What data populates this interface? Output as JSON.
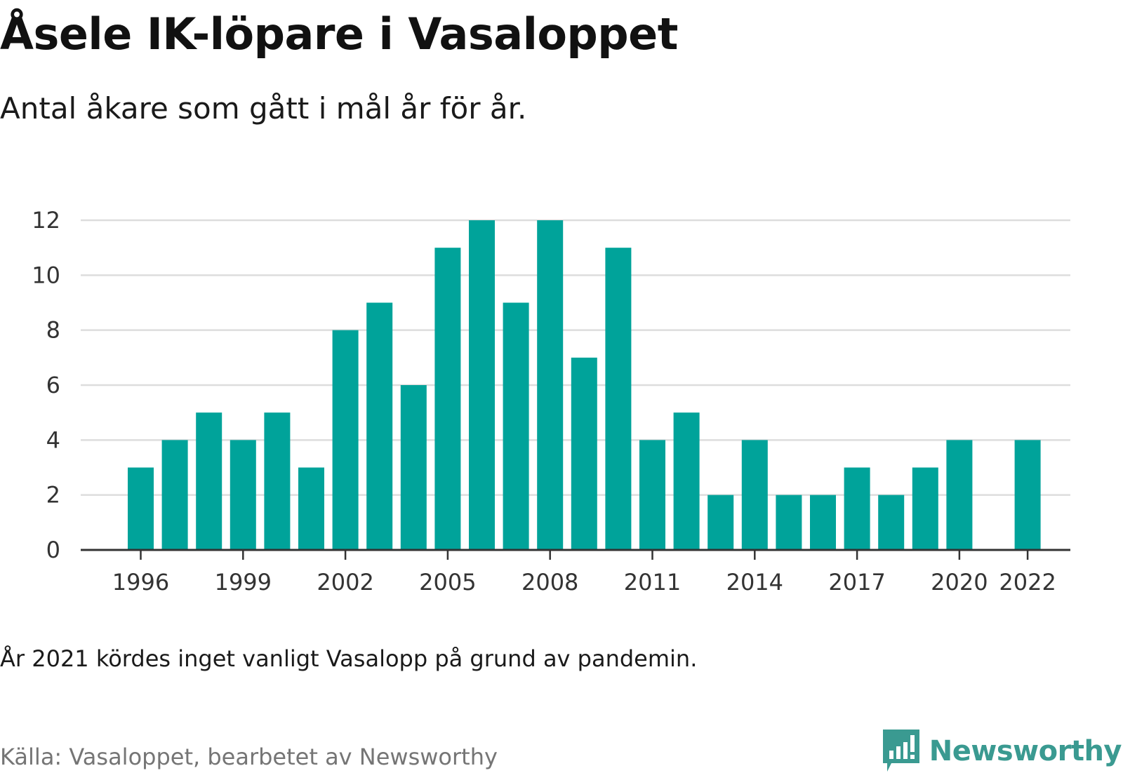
{
  "title": "Åsele IK-löpare i Vasaloppet",
  "subtitle": "Antal åkare som gått i mål år för år.",
  "note": "År 2021 kördes inget vanligt Vasalopp på grund av pandemin.",
  "source": "Källa: Vasaloppet, bearbetet av Newsworthy",
  "brand": {
    "name": "Newsworthy",
    "icon": "newsworthy-logo-icon",
    "color": "#3a9a91"
  },
  "chart_data": {
    "type": "bar",
    "title": "Åsele IK-löpare i Vasaloppet",
    "subtitle": "Antal åkare som gått i mål år för år.",
    "xlabel": "",
    "ylabel": "",
    "categories": [
      1996,
      1997,
      1998,
      1999,
      2000,
      2001,
      2002,
      2003,
      2004,
      2005,
      2006,
      2007,
      2008,
      2009,
      2010,
      2011,
      2012,
      2013,
      2014,
      2015,
      2016,
      2017,
      2018,
      2019,
      2020,
      2021,
      2022
    ],
    "values": [
      3,
      4,
      5,
      4,
      5,
      3,
      8,
      9,
      6,
      11,
      12,
      9,
      12,
      7,
      11,
      4,
      5,
      2,
      4,
      2,
      2,
      3,
      2,
      3,
      4,
      null,
      4
    ],
    "x_ticks": [
      "1996",
      "1999",
      "2002",
      "2005",
      "2008",
      "2011",
      "2014",
      "2017",
      "2020",
      "2022"
    ],
    "y_ticks": [
      "0",
      "2",
      "4",
      "6",
      "8",
      "10",
      "12"
    ],
    "ylim": [
      0,
      12
    ],
    "grid": true,
    "legend": "none",
    "bar_color": "#00a39a",
    "grid_color": "#dddddd",
    "axis_color": "#333333"
  }
}
